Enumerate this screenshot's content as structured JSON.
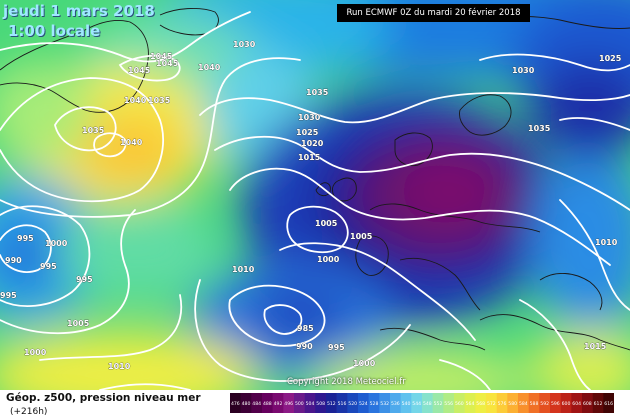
{
  "header": {
    "date_line": "jeudi 1 mars 2018",
    "time_line": "1:00 locale",
    "run_info": "Run ECMWF 0Z du mardi 20 février 2018"
  },
  "footer": {
    "legend_title": "Géop. z500, pression niveau mer",
    "forecast_hour": "(+216h)",
    "copyright": "Copyright 2018 Meteociel.fr"
  },
  "isobar_labels": [
    "1045",
    "1045",
    "1045",
    "1040",
    "1030",
    "1040",
    "1035",
    "1035",
    "1040",
    "1035",
    "1030",
    "1025",
    "1020",
    "1015",
    "1030",
    "1035",
    "1025",
    "1010",
    "1005",
    "1005",
    "1000",
    "1010",
    "995",
    "1000",
    "990",
    "995",
    "995",
    "995",
    "1005",
    "1000",
    "985",
    "990",
    "995",
    "1000",
    "1010",
    "1015"
  ],
  "colorbar": {
    "labels": [
      "476",
      "480",
      "484",
      "488",
      "492",
      "496",
      "500",
      "504",
      "508",
      "512",
      "516",
      "520",
      "524",
      "528",
      "532",
      "536",
      "540",
      "544",
      "548",
      "552",
      "556",
      "560",
      "564",
      "568",
      "572",
      "576",
      "580",
      "584",
      "588",
      "592",
      "596",
      "600",
      "604",
      "608",
      "612",
      "616"
    ],
    "colors": [
      "#2b0022",
      "#3d0036",
      "#52004a",
      "#66005e",
      "#7a0a70",
      "#8c1a86",
      "#6a1a8a",
      "#4a168c",
      "#2e1890",
      "#1a2296",
      "#1a34a8",
      "#1a48bc",
      "#1e5cd0",
      "#2a74de",
      "#3c90e6",
      "#4eaaec",
      "#60c2ee",
      "#74d6e8",
      "#86e2cc",
      "#9ae8a8",
      "#b0ec86",
      "#c8ee66",
      "#dcef50",
      "#eeee44",
      "#f8e43e",
      "#fccc38",
      "#fcb032",
      "#f8902c",
      "#f07026",
      "#e45020",
      "#d4341c",
      "#bc2218",
      "#a01414",
      "#800c10",
      "#600808",
      "#400404"
    ]
  }
}
